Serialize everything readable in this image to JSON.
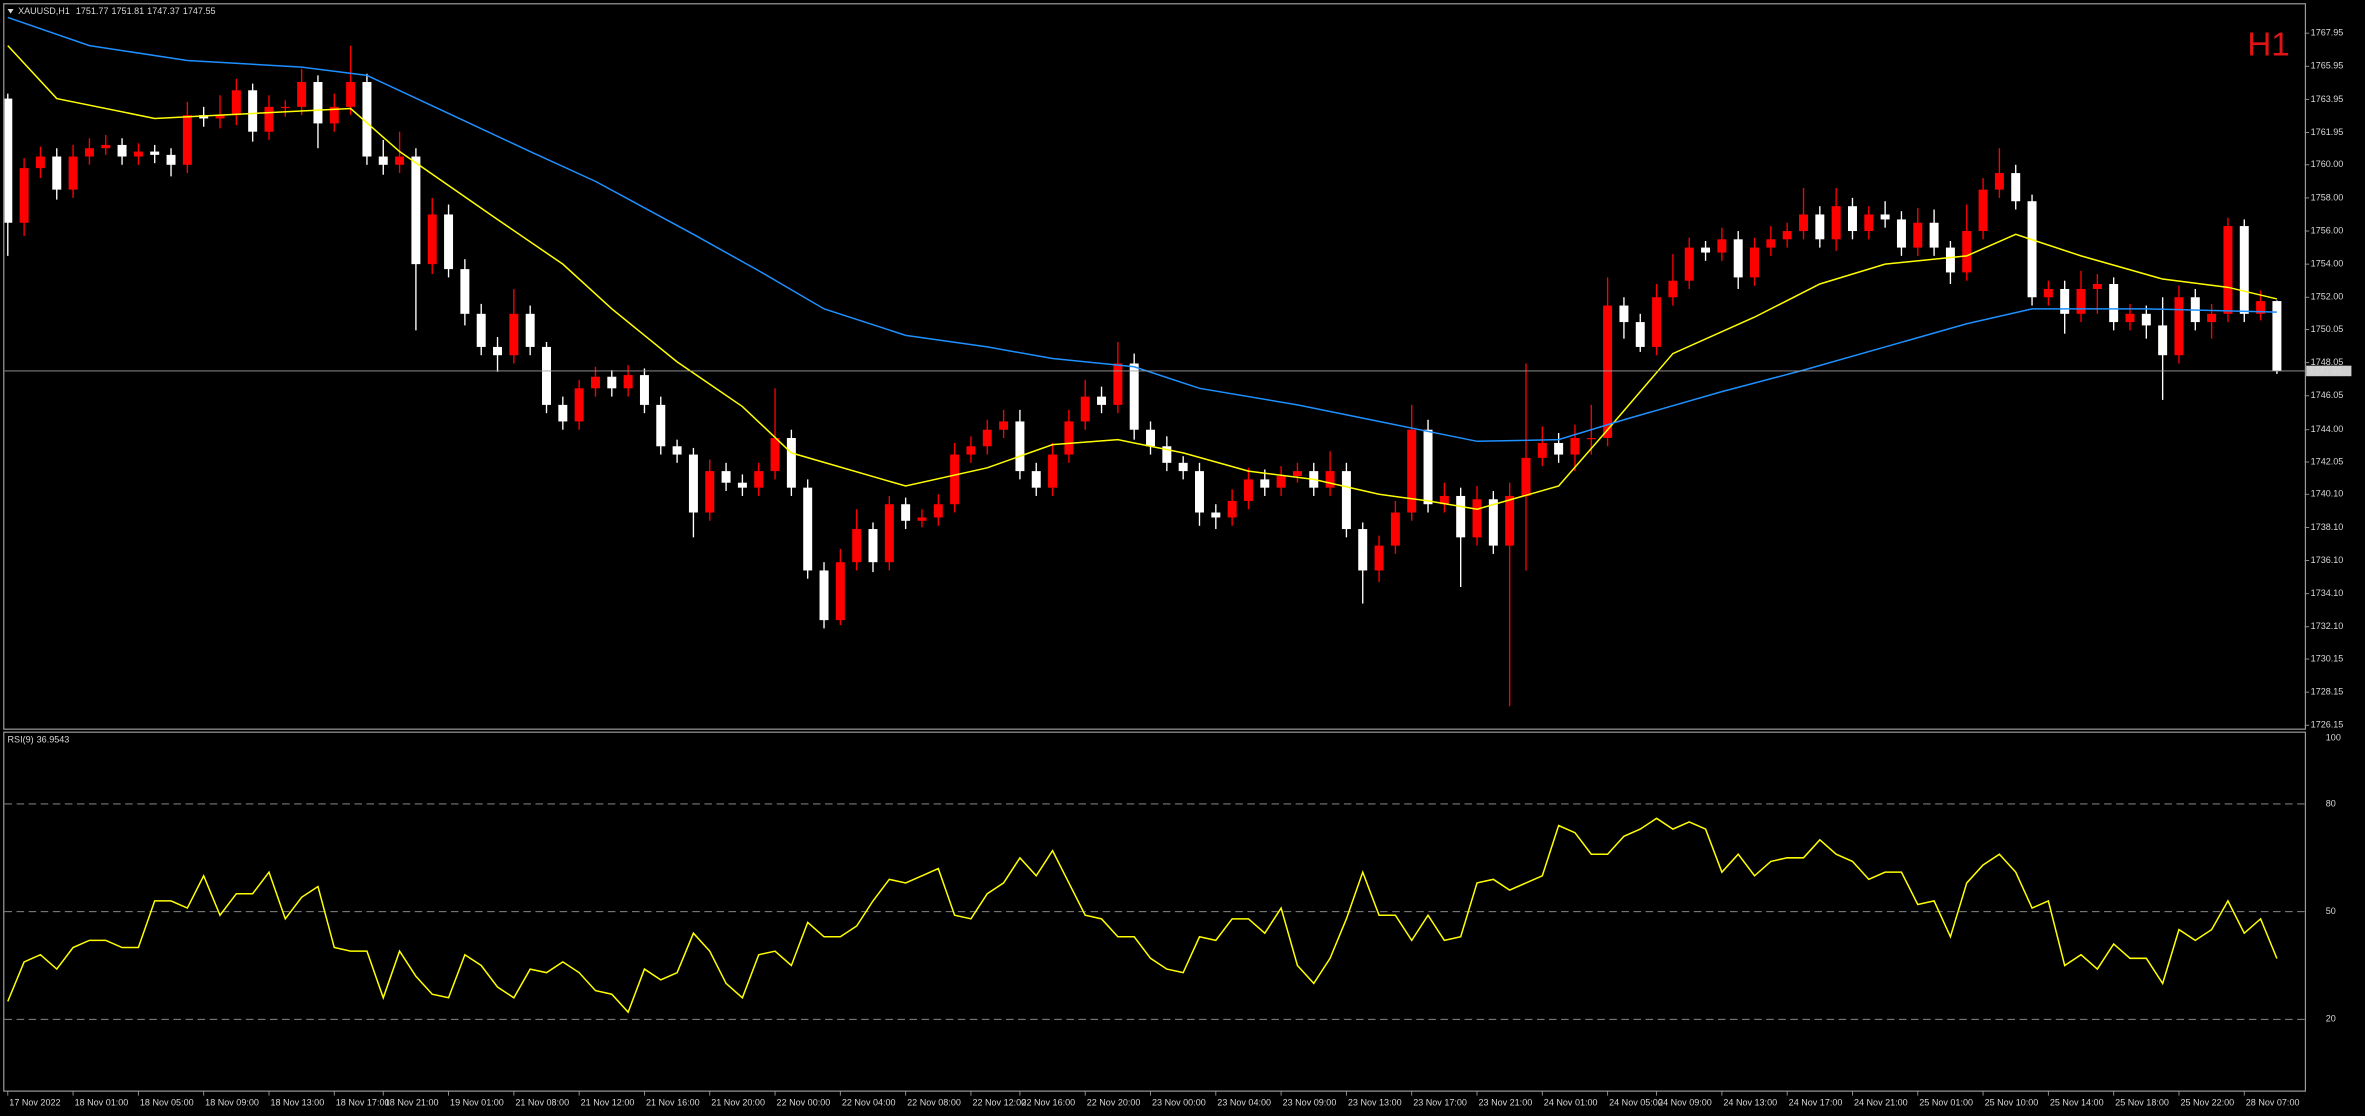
{
  "header": {
    "symbol": "XAUUSD,H1"
  },
  "timeframe_label": "H1",
  "chart_data": [
    {
      "type": "candlestick",
      "bull_color": "#ff0000",
      "bear_color": "#ffffff",
      "open": [
        1764,
        1756.5,
        1759.8,
        1760.5,
        1758.5,
        1760.5,
        1761,
        1761.2,
        1760.5,
        1760.8,
        1760.6,
        1760,
        1763,
        1762.8,
        1763,
        1764.5,
        1762,
        1763.5,
        1763.5,
        1765,
        1762.5,
        1763.5,
        1765,
        1760.5,
        1760,
        1760.5,
        1754,
        1757,
        1753.7,
        1751,
        1749,
        1748.5,
        1751,
        1749,
        1745.5,
        1744.5,
        1746.5,
        1747.2,
        1746.5,
        1747.3,
        1745.5,
        1743,
        1742.5,
        1739,
        1741.5,
        1740.8,
        1740.5,
        1741.5,
        1743.5,
        1740.5,
        1735.5,
        1732.5,
        1736,
        1738,
        1736,
        1739.5,
        1738.5,
        1738.7,
        1739.5,
        1742.5,
        1743,
        1744,
        1744.5,
        1741.5,
        1740.5,
        1742.5,
        1744.5,
        1746,
        1745.5,
        1748,
        1744,
        1743,
        1742,
        1741.5,
        1739,
        1738.7,
        1739.7,
        1741,
        1740.5,
        1741.2,
        1741.5,
        1740.5,
        1741.5,
        1738,
        1735.5,
        1737,
        1739,
        1744,
        1739.5,
        1740,
        1737.5,
        1739.8,
        1737,
        1740,
        1742.3,
        1743.2,
        1742.5,
        1743.5,
        1743.5,
        1751.5,
        1750.5,
        1749,
        1752,
        1753,
        1755,
        1754.7,
        1755.5,
        1753.2,
        1755,
        1755.5,
        1756,
        1757,
        1755.5,
        1757.5,
        1756,
        1757,
        1756.7,
        1755,
        1756.5,
        1755,
        1753.5,
        1756,
        1758.5,
        1759.5,
        1757.8,
        1752,
        1752.5,
        1751,
        1752.5,
        1752.8,
        1750.5,
        1751,
        1750.3,
        1748.5,
        1752,
        1750.5,
        1751,
        1756.3,
        1751,
        1751.77
      ],
      "high": [
        1764.3,
        1760.4,
        1761.1,
        1761,
        1761.2,
        1761.6,
        1761.8,
        1761.6,
        1761.3,
        1761.2,
        1761,
        1763.8,
        1763.5,
        1764.2,
        1765.2,
        1764.9,
        1764.2,
        1763.9,
        1765.8,
        1765.4,
        1764.3,
        1767.2,
        1765.5,
        1761.5,
        1762,
        1761,
        1758,
        1757.6,
        1754.3,
        1751.6,
        1749.6,
        1752.5,
        1751.5,
        1749.3,
        1746,
        1747,
        1747.8,
        1747.6,
        1747.9,
        1747.7,
        1746,
        1743.4,
        1742.9,
        1742.2,
        1742,
        1741.3,
        1742,
        1746.5,
        1744,
        1741,
        1736,
        1736.8,
        1739.2,
        1738.4,
        1740,
        1739.9,
        1739.2,
        1740.1,
        1743.2,
        1743.6,
        1744.6,
        1745.2,
        1745.2,
        1742,
        1743.2,
        1745.2,
        1747,
        1746.6,
        1749.3,
        1748.6,
        1744.5,
        1743.6,
        1742.4,
        1742,
        1739.5,
        1740.4,
        1741.7,
        1741.6,
        1741.8,
        1742,
        1742,
        1742.7,
        1742,
        1738.4,
        1737.6,
        1739.7,
        1745.5,
        1744.6,
        1740.8,
        1740.5,
        1740.6,
        1740.3,
        1740.8,
        1748,
        1744.2,
        1743.8,
        1744.3,
        1745.5,
        1753.2,
        1752,
        1751,
        1752.8,
        1754.6,
        1755.6,
        1755.4,
        1756.2,
        1756,
        1755.6,
        1756.3,
        1756.5,
        1758.6,
        1757.5,
        1758.6,
        1758,
        1757.5,
        1757.8,
        1757.2,
        1757.4,
        1757.3,
        1755.4,
        1757.6,
        1759.2,
        1761,
        1760,
        1758.2,
        1753,
        1753,
        1753.6,
        1753.4,
        1753.2,
        1751.6,
        1751.5,
        1752,
        1752.7,
        1752.5,
        1751.6,
        1756.8,
        1756.7,
        1752.4,
        1751.81
      ],
      "low": [
        1754.5,
        1755.7,
        1759.2,
        1757.9,
        1758,
        1760,
        1760.6,
        1760,
        1760,
        1760.1,
        1759.3,
        1759.5,
        1762.3,
        1762.2,
        1762.4,
        1761.4,
        1761.5,
        1762.9,
        1763,
        1761,
        1762,
        1763,
        1760,
        1759.4,
        1759.5,
        1750,
        1753.4,
        1753.2,
        1750.3,
        1748.5,
        1747.5,
        1748,
        1748.5,
        1745,
        1744,
        1744,
        1746,
        1746,
        1746,
        1745,
        1742.5,
        1742,
        1737.5,
        1738.5,
        1740.3,
        1740,
        1740,
        1741,
        1740,
        1735,
        1732,
        1732.2,
        1735.5,
        1735.4,
        1735.5,
        1738,
        1738.1,
        1738.2,
        1739,
        1742,
        1742.5,
        1743.5,
        1741,
        1740,
        1740,
        1742,
        1744,
        1745,
        1745,
        1743.4,
        1742.5,
        1741.5,
        1741,
        1738.2,
        1738,
        1738.2,
        1739.2,
        1740,
        1740,
        1740.8,
        1740,
        1740,
        1737.5,
        1733.5,
        1734.8,
        1736.5,
        1738.5,
        1739,
        1739,
        1734.5,
        1737,
        1736.5,
        1727.3,
        1735.5,
        1741.8,
        1742,
        1741.5,
        1742.5,
        1743,
        1749.5,
        1748.7,
        1748.5,
        1751.5,
        1752.5,
        1754.2,
        1754.2,
        1752.5,
        1752.7,
        1754.5,
        1755,
        1755.5,
        1755,
        1754.8,
        1755.5,
        1755.5,
        1756.2,
        1754.5,
        1754.5,
        1754.5,
        1752.8,
        1753,
        1755.5,
        1758,
        1757.3,
        1751.5,
        1751.5,
        1749.8,
        1750.5,
        1751,
        1750,
        1750,
        1749.5,
        1745.8,
        1748,
        1750,
        1749.5,
        1750.5,
        1750.5,
        1750.6,
        1747.37
      ],
      "close": [
        1756.5,
        1759.8,
        1760.5,
        1758.5,
        1760.5,
        1761,
        1761.2,
        1760.5,
        1760.8,
        1760.6,
        1760,
        1763,
        1762.8,
        1763,
        1764.5,
        1762,
        1763.5,
        1763.5,
        1765,
        1762.5,
        1763.5,
        1765,
        1760.5,
        1760,
        1760.5,
        1754,
        1757,
        1753.7,
        1751,
        1749,
        1748.5,
        1751,
        1749,
        1745.5,
        1744.5,
        1746.5,
        1747.2,
        1746.5,
        1747.3,
        1745.5,
        1743,
        1742.5,
        1739,
        1741.5,
        1740.8,
        1740.5,
        1741.5,
        1743.5,
        1740.5,
        1735.5,
        1732.5,
        1736,
        1738,
        1736,
        1739.5,
        1738.5,
        1738.7,
        1739.5,
        1742.5,
        1743,
        1744,
        1744.5,
        1741.5,
        1740.5,
        1742.5,
        1744.5,
        1746,
        1745.5,
        1748,
        1744,
        1743,
        1742,
        1741.5,
        1739,
        1738.7,
        1739.7,
        1741,
        1740.5,
        1741.2,
        1741.5,
        1740.5,
        1741.5,
        1738,
        1735.5,
        1737,
        1739,
        1744,
        1739.5,
        1740,
        1737.5,
        1739.8,
        1737,
        1740,
        1742.3,
        1743.2,
        1742.5,
        1743.5,
        1743.5,
        1751.5,
        1750.5,
        1749,
        1752,
        1753,
        1755,
        1754.7,
        1755.5,
        1753.2,
        1755,
        1755.5,
        1756,
        1757,
        1755.5,
        1757.5,
        1756,
        1757,
        1756.7,
        1755,
        1756.5,
        1755,
        1753.5,
        1756,
        1758.5,
        1759.5,
        1757.8,
        1752,
        1752.5,
        1751,
        1752.5,
        1752.8,
        1750.5,
        1751,
        1750.3,
        1748.5,
        1752,
        1750.5,
        1751,
        1756.3,
        1751,
        1751.77,
        1747.55
      ],
      "xlim": [
        -0.2,
        140.7
      ],
      "ylim": [
        1725.96,
        1769.68
      ],
      "yticks": [
        1767.95,
        1765.95,
        1763.95,
        1761.95,
        {
          "value": 1760,
          "label": "1760.00"
        },
        {
          "value": 1758,
          "label": "1758.00"
        },
        {
          "value": 1756,
          "label": "1756.00"
        },
        {
          "value": 1754,
          "label": "1754.00"
        },
        {
          "value": 1752,
          "label": "1752.00"
        },
        1750.05,
        1748.05,
        1746.05,
        {
          "value": 1744,
          "label": "1744.00"
        },
        1742.05,
        {
          "value": 1740.1,
          "label": "1740.10"
        },
        {
          "value": 1738.1,
          "label": "1738.10"
        },
        {
          "value": 1736.1,
          "label": "1736.10"
        },
        {
          "value": 1734.1,
          "label": "1734.10"
        },
        {
          "value": 1732.1,
          "label": "1732.10"
        },
        1730.15,
        1728.15,
        1726.15
      ],
      "xticks": [
        {
          "value": 0,
          "label": "17 Nov 2022"
        },
        {
          "value": 4,
          "label": "18 Nov 01:00"
        },
        {
          "value": 8,
          "label": "18 Nov 05:00"
        },
        {
          "value": 12,
          "label": "18 Nov 09:00"
        },
        {
          "value": 16,
          "label": "18 Nov 13:00"
        },
        {
          "value": 20,
          "label": "18 Nov 17:00"
        },
        {
          "value": 23,
          "label": "18 Nov 21:00"
        },
        {
          "value": 27,
          "label": "19 Nov 01:00"
        },
        {
          "value": 31,
          "label": "21 Nov 08:00"
        },
        {
          "value": 35,
          "label": "21 Nov 12:00"
        },
        {
          "value": 39,
          "label": "21 Nov 16:00"
        },
        {
          "value": 43,
          "label": "21 Nov 20:00"
        },
        {
          "value": 47,
          "label": "22 Nov 00:00"
        },
        {
          "value": 51,
          "label": "22 Nov 04:00"
        },
        {
          "value": 55,
          "label": "22 Nov 08:00"
        },
        {
          "value": 59,
          "label": "22 Nov 12:00"
        },
        {
          "value": 62,
          "label": "22 Nov 16:00"
        },
        {
          "value": 66,
          "label": "22 Nov 20:00"
        },
        {
          "value": 70,
          "label": "23 Nov 00:00"
        },
        {
          "value": 74,
          "label": "23 Nov 04:00"
        },
        {
          "value": 78,
          "label": "23 Nov 09:00"
        },
        {
          "value": 82,
          "label": "23 Nov 13:00"
        },
        {
          "value": 86,
          "label": "23 Nov 17:00"
        },
        {
          "value": 90,
          "label": "23 Nov 21:00"
        },
        {
          "value": 94,
          "label": "24 Nov 01:00"
        },
        {
          "value": 98,
          "label": "24 Nov 05:00"
        },
        {
          "value": 101,
          "label": "24 Nov 09:00"
        },
        {
          "value": 105,
          "label": "24 Nov 13:00"
        },
        {
          "value": 109,
          "label": "24 Nov 17:00"
        },
        {
          "value": 113,
          "label": "24 Nov 21:00"
        },
        {
          "value": 117,
          "label": "25 Nov 01:00"
        },
        {
          "value": 121,
          "label": "25 Nov 10:00"
        },
        {
          "value": 125,
          "label": "25 Nov 14:00"
        },
        {
          "value": 129,
          "label": "25 Nov 18:00"
        },
        {
          "value": 133,
          "label": "25 Nov 22:00"
        },
        {
          "value": 137,
          "label": "28 Nov 07:00"
        }
      ],
      "overlays": [
        {
          "type": "line",
          "color": "#ffff00",
          "x": [
            0,
            3,
            9,
            13,
            21,
            24,
            30,
            34,
            37,
            41,
            45,
            48,
            55,
            60,
            64,
            68,
            72,
            76,
            80,
            84,
            87,
            90,
            95,
            98,
            102,
            107,
            111,
            115,
            120,
            123,
            127,
            132,
            136,
            139
          ],
          "values": [
            1767.2,
            1764,
            1762.8,
            1763,
            1763.4,
            1760.8,
            1756.7,
            1754,
            1751.3,
            1748.1,
            1745.4,
            1742.6,
            1740.6,
            1741.7,
            1743.1,
            1743.4,
            1742.6,
            1741.5,
            1741,
            1740.1,
            1739.7,
            1739.2,
            1740.6,
            1744,
            1748.6,
            1750.8,
            1752.8,
            1754,
            1754.5,
            1755.8,
            1754.5,
            1753.1,
            1752.6,
            1751.9
          ]
        },
        {
          "type": "line",
          "color": "#1e90ff",
          "x": [
            0,
            5,
            11,
            18,
            22,
            27,
            32,
            36,
            42,
            46,
            50,
            55,
            60,
            64,
            69,
            73,
            79,
            85,
            90,
            95,
            99,
            105,
            110,
            115,
            120,
            124,
            131,
            139
          ],
          "values": [
            1768.9,
            1767.2,
            1766.3,
            1765.9,
            1765.4,
            1763.1,
            1760.8,
            1759,
            1755.8,
            1753.6,
            1751.3,
            1749.7,
            1749,
            1748.3,
            1747.8,
            1746.5,
            1745.5,
            1744.3,
            1743.3,
            1743.4,
            1744.6,
            1746.3,
            1747.6,
            1749,
            1750.4,
            1751.3,
            1751.3,
            1751.1
          ]
        }
      ]
    },
    {
      "type": "line",
      "title": "RSI(9)",
      "color": "#ffff00",
      "values": [
        25,
        36,
        38,
        34,
        40,
        42,
        42,
        40,
        40,
        53,
        53,
        51,
        60,
        49,
        55,
        55,
        61,
        48,
        54,
        57,
        40,
        39,
        39,
        26,
        39,
        32,
        27,
        26,
        38,
        35,
        29,
        26,
        34,
        33,
        36,
        33,
        28,
        27,
        22,
        34,
        31,
        33,
        44,
        39,
        30,
        26,
        38,
        39,
        35,
        47,
        43,
        43,
        46,
        53,
        59,
        58,
        60,
        62,
        49,
        48,
        55,
        58,
        65,
        60,
        67,
        58,
        49,
        48,
        43,
        43,
        37,
        34,
        33,
        43,
        42,
        48,
        48,
        44,
        51,
        35,
        30,
        37,
        48,
        61,
        49,
        49,
        42,
        49,
        42,
        43,
        58,
        59,
        56,
        58,
        60,
        74,
        72,
        66,
        66,
        71,
        73,
        76,
        73,
        75,
        73,
        61,
        66,
        60,
        64,
        65,
        65,
        70,
        66,
        64,
        59,
        61,
        61,
        52,
        53,
        43,
        58,
        63,
        66,
        61,
        51,
        53,
        35,
        38,
        34,
        41,
        37,
        37,
        30,
        45,
        42,
        45,
        53,
        44,
        48,
        36.9543
      ],
      "ylim": [
        0,
        100
      ],
      "yticks": [
        100,
        80,
        50,
        20
      ]
    }
  ]
}
